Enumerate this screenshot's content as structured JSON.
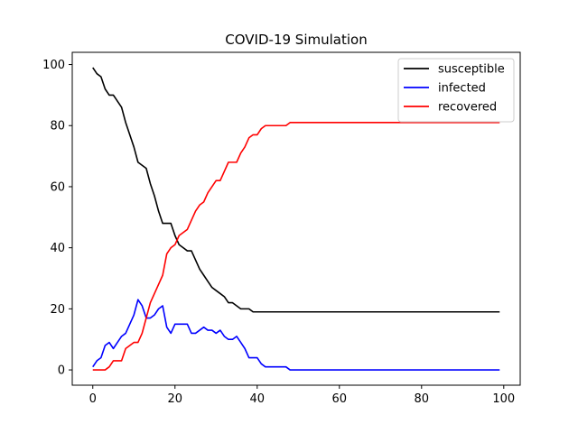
{
  "chart_data": {
    "type": "line",
    "title": "COVID-19 Simulation",
    "xlabel": "",
    "ylabel": "",
    "xlim": [
      -5,
      104
    ],
    "ylim": [
      -5,
      104
    ],
    "xticks": [
      0,
      20,
      40,
      60,
      80,
      100
    ],
    "yticks": [
      0,
      20,
      40,
      60,
      80,
      100
    ],
    "grid": false,
    "legend_position": "top-right",
    "x": [
      0,
      1,
      2,
      3,
      4,
      5,
      6,
      7,
      8,
      9,
      10,
      11,
      12,
      13,
      14,
      15,
      16,
      17,
      18,
      19,
      20,
      21,
      22,
      23,
      24,
      25,
      26,
      27,
      28,
      29,
      30,
      31,
      32,
      33,
      34,
      35,
      36,
      37,
      38,
      39,
      40,
      41,
      42,
      43,
      44,
      45,
      46,
      47,
      48,
      49,
      50,
      51,
      52,
      53,
      54,
      55,
      56,
      57,
      58,
      59,
      60,
      61,
      62,
      63,
      64,
      65,
      66,
      67,
      68,
      69,
      70,
      71,
      72,
      73,
      74,
      75,
      76,
      77,
      78,
      79,
      80,
      81,
      82,
      83,
      84,
      85,
      86,
      87,
      88,
      89,
      90,
      91,
      92,
      93,
      94,
      95,
      96,
      97,
      98,
      99
    ],
    "series": [
      {
        "name": "susceptible",
        "color": "#000000",
        "values": [
          99,
          97,
          96,
          92,
          90,
          90,
          88,
          86,
          81,
          77,
          73,
          68,
          67,
          66,
          61,
          57,
          52,
          48,
          48,
          48,
          44,
          41,
          40,
          39,
          39,
          36,
          33,
          31,
          29,
          27,
          26,
          25,
          24,
          22,
          22,
          21,
          20,
          20,
          20,
          19,
          19,
          19,
          19,
          19,
          19,
          19,
          19,
          19,
          19,
          19,
          19,
          19,
          19,
          19,
          19,
          19,
          19,
          19,
          19,
          19,
          19,
          19,
          19,
          19,
          19,
          19,
          19,
          19,
          19,
          19,
          19,
          19,
          19,
          19,
          19,
          19,
          19,
          19,
          19,
          19,
          19,
          19,
          19,
          19,
          19,
          19,
          19,
          19,
          19,
          19,
          19,
          19,
          19,
          19,
          19,
          19,
          19,
          19,
          19,
          19
        ]
      },
      {
        "name": "infected",
        "color": "#0000ff",
        "values": [
          1,
          3,
          4,
          8,
          9,
          7,
          9,
          11,
          12,
          15,
          18,
          23,
          21,
          17,
          17,
          18,
          20,
          21,
          14,
          12,
          15,
          15,
          15,
          15,
          12,
          12,
          13,
          14,
          13,
          13,
          12,
          13,
          11,
          10,
          10,
          11,
          9,
          7,
          4,
          4,
          4,
          2,
          1,
          1,
          1,
          1,
          1,
          1,
          0,
          0,
          0,
          0,
          0,
          0,
          0,
          0,
          0,
          0,
          0,
          0,
          0,
          0,
          0,
          0,
          0,
          0,
          0,
          0,
          0,
          0,
          0,
          0,
          0,
          0,
          0,
          0,
          0,
          0,
          0,
          0,
          0,
          0,
          0,
          0,
          0,
          0,
          0,
          0,
          0,
          0,
          0,
          0,
          0,
          0,
          0,
          0,
          0,
          0,
          0,
          0
        ]
      },
      {
        "name": "recovered",
        "color": "#ff0000",
        "values": [
          0,
          0,
          0,
          0,
          1,
          3,
          3,
          3,
          7,
          8,
          9,
          9,
          12,
          17,
          22,
          25,
          28,
          31,
          38,
          40,
          41,
          44,
          45,
          46,
          49,
          52,
          54,
          55,
          58,
          60,
          62,
          62,
          65,
          68,
          68,
          68,
          71,
          73,
          76,
          77,
          77,
          79,
          80,
          80,
          80,
          80,
          80,
          80,
          81,
          81,
          81,
          81,
          81,
          81,
          81,
          81,
          81,
          81,
          81,
          81,
          81,
          81,
          81,
          81,
          81,
          81,
          81,
          81,
          81,
          81,
          81,
          81,
          81,
          81,
          81,
          81,
          81,
          81,
          81,
          81,
          81,
          81,
          81,
          81,
          81,
          81,
          81,
          81,
          81,
          81,
          81,
          81,
          81,
          81,
          81,
          81,
          81,
          81,
          81,
          81
        ]
      }
    ]
  }
}
